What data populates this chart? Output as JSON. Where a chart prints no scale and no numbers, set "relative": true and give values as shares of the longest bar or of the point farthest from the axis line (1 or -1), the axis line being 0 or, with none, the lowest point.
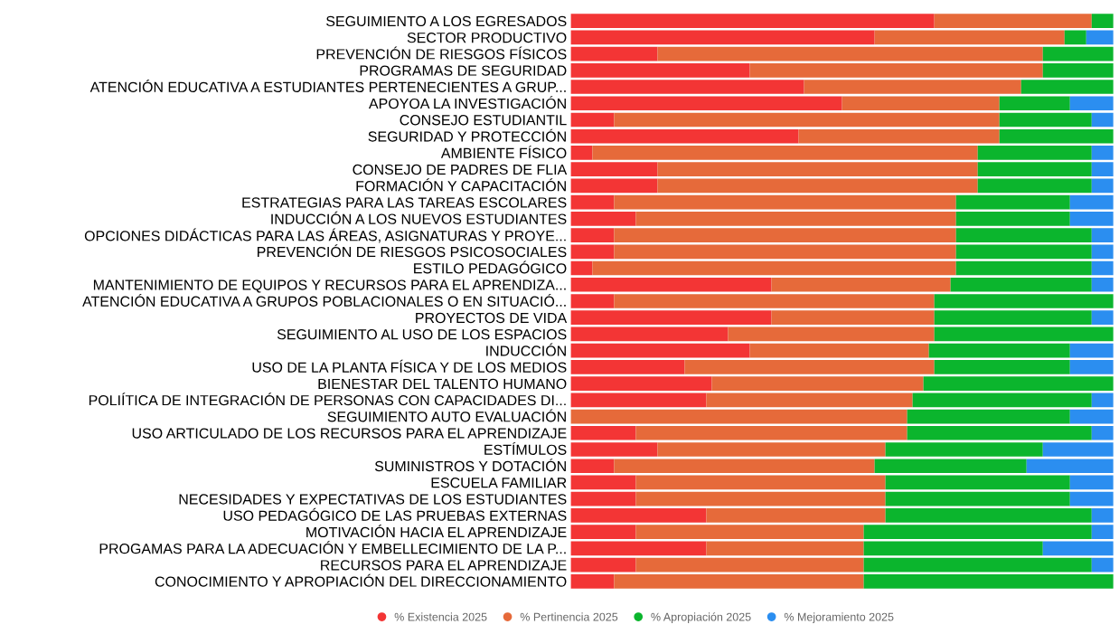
{
  "chart_data": {
    "type": "bar",
    "orientation": "horizontal",
    "stacked": true,
    "relative": true,
    "legend": "bottom",
    "grid": false,
    "categories": [
      "SEGUIMIENTO A LOS EGRESADOS",
      "SECTOR PRODUCTIVO",
      "PREVENCIÓN DE RIESGOS FÍSICOS",
      "PROGRAMAS DE SEGURIDAD",
      "ATENCIÓN EDUCATIVA A ESTUDIANTES PERTENECIENTES A GRUP...",
      "APOYOA LA INVESTIGACIÓN",
      "CONSEJO ESTUDIANTIL",
      "SEGURIDAD Y PROTECCIÓN",
      "AMBIENTE FÍSICO",
      "CONSEJO DE PADRES DE FLIA",
      "FORMACIÓN Y CAPACITACIÓN",
      "ESTRATEGIAS PARA LAS TAREAS ESCOLARES",
      "INDUCCIÓN A LOS NUEVOS ESTUDIANTES",
      "OPCIONES DIDÁCTICAS PARA LAS ÁREAS, ASIGNATURAS Y PROYE...",
      "PREVENCIÓN DE RIESGOS PSICOSOCIALES",
      "ESTILO PEDAGÓGICO",
      "MANTENIMIENTO DE EQUIPOS Y RECURSOS PARA EL APRENDIZA...",
      "ATENCIÓN EDUCATIVA A GRUPOS POBLACIONALES O EN SITUACIÓ...",
      "PROYECTOS DE VIDA",
      "SEGUIMIENTO AL USO DE LOS ESPACIOS",
      "INDUCCIÓN",
      "USO DE LA PLANTA FÍSICA Y DE LOS MEDIOS",
      "BIENESTAR DEL TALENTO HUMANO",
      "POLIÍTICA DE INTEGRACIÓN DE PERSONAS CON CAPACIDADES DI...",
      "SEGUIMIENTO AUTO EVALUACIÓN",
      "USO ARTICULADO DE LOS RECURSOS PARA EL APRENDIZAJE",
      "ESTÍMULOS",
      "SUMINISTROS Y DOTACIÓN",
      "ESCUELA FAMILIAR",
      "NECESIDADES Y EXPECTATIVAS DE LOS ESTUDIANTES",
      "USO PEDAGÓGICO DE LAS PRUEBAS EXTERNAS",
      "MOTIVACIÓN HACIA EL APRENDIZAJE",
      "PROGAMAS PARA LA ADECUACIÓN Y EMBELLECIMIENTO DE LA P...",
      "RECURSOS PARA EL APRENDIZAJE",
      "CONOCIMIENTO Y APROPIACIÓN DEL DIRECCIONAMIENTO"
    ],
    "series": [
      {
        "name": "% Existencia 2025",
        "color": "#f33535",
        "values": [
          0.67,
          0.56,
          0.16,
          0.33,
          0.43,
          0.5,
          0.08,
          0.42,
          0.04,
          0.16,
          0.16,
          0.08,
          0.12,
          0.08,
          0.08,
          0.04,
          0.37,
          0.08,
          0.37,
          0.29,
          0.33,
          0.21,
          0.26,
          0.25,
          0,
          0.12,
          0.16,
          0.08,
          0.12,
          0.12,
          0.25,
          0.12,
          0.25,
          0.12,
          0.08
        ]
      },
      {
        "name": "% Pertinencia 2025",
        "color": "#e66a3a",
        "values": [
          0.29,
          0.35,
          0.71,
          0.54,
          0.4,
          0.29,
          0.71,
          0.37,
          0.71,
          0.59,
          0.59,
          0.63,
          0.59,
          0.63,
          0.63,
          0.67,
          0.33,
          0.59,
          0.3,
          0.38,
          0.33,
          0.46,
          0.39,
          0.38,
          0.62,
          0.5,
          0.42,
          0.48,
          0.46,
          0.46,
          0.33,
          0.42,
          0.29,
          0.42,
          0.46
        ]
      },
      {
        "name": "% Apropiación 2025",
        "color": "#0bb52d",
        "values": [
          0.04,
          0.04,
          0.13,
          0.13,
          0.17,
          0.13,
          0.17,
          0.21,
          0.21,
          0.21,
          0.21,
          0.21,
          0.21,
          0.25,
          0.25,
          0.25,
          0.26,
          0.33,
          0.29,
          0.33,
          0.26,
          0.25,
          0.35,
          0.33,
          0.3,
          0.34,
          0.29,
          0.28,
          0.34,
          0.34,
          0.38,
          0.42,
          0.33,
          0.42,
          0.46
        ]
      },
      {
        "name": "% Mejoramiento 2025",
        "color": "#2b8ef0",
        "values": [
          0,
          0.05,
          0,
          0,
          0,
          0.08,
          0.04,
          0,
          0.04,
          0.04,
          0.04,
          0.08,
          0.08,
          0.04,
          0.04,
          0.04,
          0.04,
          0,
          0.04,
          0,
          0.08,
          0.08,
          0,
          0.04,
          0.08,
          0.04,
          0.13,
          0.16,
          0.08,
          0.08,
          0.04,
          0.04,
          0.13,
          0.04,
          0
        ]
      }
    ]
  }
}
